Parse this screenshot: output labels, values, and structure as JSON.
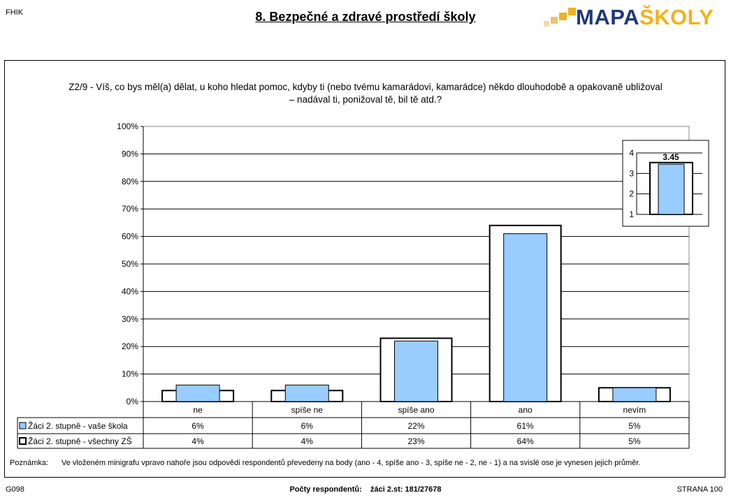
{
  "header": {
    "corner_code": "FHIK",
    "title": "8. Bezpečné a zdravé prostředí školy",
    "logo_part1": "MAPA",
    "logo_part2": "ŠKOLY"
  },
  "question": {
    "line1": "Z2/9 - Víš, co bys měl(a) dělat, u koho hledat pomoc, kdyby ti (nebo tvému kamarádovi, kamarádce) někdo dlouhodobě a opakovaně ubližoval",
    "line2": "– nadával ti, ponižoval tě, bil tě atd.?"
  },
  "colors": {
    "school_fill": "#99ccff",
    "all_fill": "#ffffff",
    "logo_blue": "#1f3a78",
    "logo_orange": "#f2b21c"
  },
  "chart_data": {
    "type": "bar",
    "categories": [
      "ne",
      "spíše ne",
      "spíše ano",
      "ano",
      "nevím"
    ],
    "series": [
      {
        "name": "Žáci 2. stupně - vaše škola",
        "values": [
          6,
          6,
          22,
          61,
          5
        ],
        "labels": [
          "6%",
          "6%",
          "22%",
          "61%",
          "5%"
        ]
      },
      {
        "name": "Žáci 2. stupně - všechny ZŠ",
        "values": [
          4,
          4,
          23,
          64,
          5
        ],
        "labels": [
          "4%",
          "4%",
          "23%",
          "64%",
          "5%"
        ]
      }
    ],
    "ylim": [
      0,
      100
    ],
    "yticks": [
      "0%",
      "10%",
      "20%",
      "30%",
      "40%",
      "50%",
      "60%",
      "70%",
      "80%",
      "90%",
      "100%"
    ],
    "grid": true,
    "data_table": true,
    "inset": {
      "type": "bar",
      "ylim": [
        1,
        4
      ],
      "yticks": [
        "1",
        "2",
        "3",
        "4"
      ],
      "school_value": 3.45,
      "school_label": "3.45",
      "all_value": 3.53
    }
  },
  "note": {
    "label": "Poznámka:",
    "text": "Ve vloženém minigrafu vpravo nahoře jsou odpovědi respondentů převedeny na body (ano - 4, spíše ano - 3, spíše ne - 2, ne - 1) a na svislé ose je vynesen jejich průměr."
  },
  "footer": {
    "code": "G098",
    "respondents_label": "Počty respondentů:",
    "respondents_value": "žáci 2.st: 181/27678",
    "page": "STRANA 100"
  }
}
